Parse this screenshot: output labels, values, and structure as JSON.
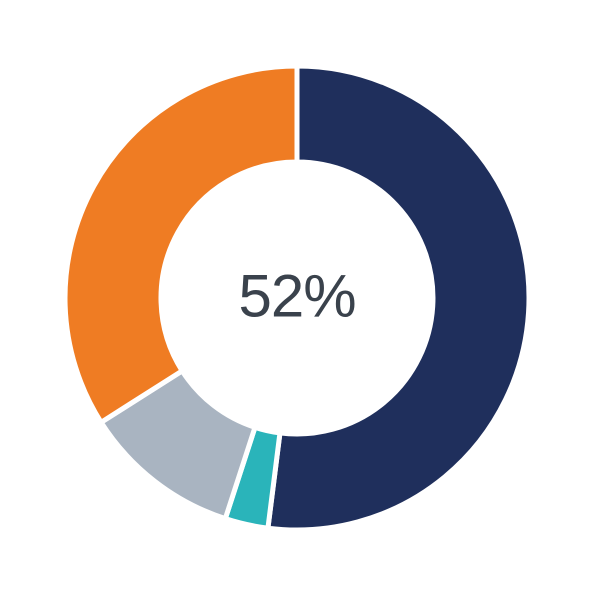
{
  "chart_data": {
    "type": "pie",
    "variant": "donut",
    "title": "",
    "center_label": "52%",
    "direction": "clockwise",
    "start_angle_deg": 0,
    "inner_radius_ratio": 0.59,
    "legend_position": "none",
    "separator_color": "#FFFFFF",
    "center_label_color": "#3A424C",
    "background_color": "#FFFFFF",
    "segments": [
      {
        "name": "navy",
        "value": 52,
        "color": "#1F2F5C"
      },
      {
        "name": "teal",
        "value": 3,
        "color": "#2AB4BA"
      },
      {
        "name": "gray",
        "value": 11,
        "color": "#A9B4C1"
      },
      {
        "name": "orange",
        "value": 34,
        "color": "#EF7C23"
      }
    ]
  }
}
